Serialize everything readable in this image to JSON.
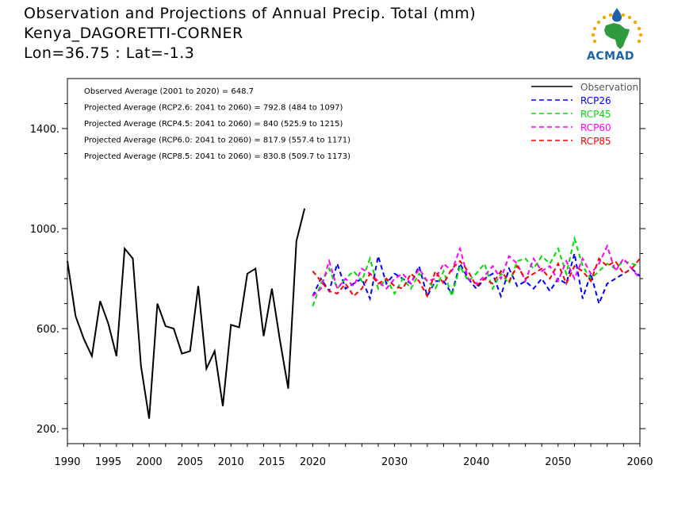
{
  "header": {
    "title": "Observation and Projections of Annual Precip. Total (mm)",
    "station": "Kenya_DAGORETTI-CORNER",
    "coords": "Lon=36.75 : Lat=-1.3"
  },
  "logo": {
    "text": "ACMAD"
  },
  "annotations": [
    "Observed Average (2001 to 2020) = 648.7",
    "Projected Average (RCP2.6: 2041 to 2060) = 792.8 (484 to 1097)",
    "Projected Average (RCP4.5: 2041 to 2060) = 840 (525.9 to 1215)",
    "Projected Average (RCP6.0: 2041 to 2060) = 817.9 (557.4 to 1171)",
    "Projected Average (RCP8.5: 2041 to 2060) = 830.8 (509.7 to 1173)"
  ],
  "chart_data": {
    "type": "line",
    "title": "Observation and Projections of Annual Precip. Total (mm)",
    "xlim": [
      1990,
      2060
    ],
    "ylim": [
      140,
      1600
    ],
    "xticks_labeled": [
      1990,
      1995,
      2000,
      2005,
      2010,
      2015,
      2020,
      2030,
      2040,
      2050,
      2060
    ],
    "yticks": [
      200,
      600,
      1000,
      1400
    ],
    "ytick_labels": [
      "200.",
      "600.",
      "1000.",
      "1400."
    ],
    "legend_position": "top-right",
    "series": [
      {
        "name": "Observation",
        "color": "#000000",
        "dash": "solid",
        "x": [
          1990,
          1991,
          1992,
          1993,
          1994,
          1995,
          1996,
          1997,
          1998,
          1999,
          2000,
          2001,
          2002,
          2003,
          2004,
          2005,
          2006,
          2007,
          2008,
          2009,
          2010,
          2011,
          2012,
          2013,
          2014,
          2015,
          2016,
          2017,
          2018,
          2019,
          2020
        ],
        "values": [
          870,
          650,
          560,
          490,
          710,
          620,
          490,
          920,
          880,
          450,
          240,
          700,
          610,
          600,
          500,
          510,
          770,
          440,
          510,
          290,
          615,
          605,
          820,
          840,
          570,
          760,
          550,
          360,
          950,
          1080,
          null
        ]
      },
      {
        "name": "RCP26",
        "color": "#0000ff",
        "dash": "dashed",
        "x": [
          2020,
          2021,
          2022,
          2023,
          2024,
          2025,
          2026,
          2027,
          2028,
          2029,
          2030,
          2031,
          2032,
          2033,
          2034,
          2035,
          2036,
          2037,
          2038,
          2039,
          2040,
          2041,
          2042,
          2043,
          2044,
          2045,
          2046,
          2047,
          2048,
          2049,
          2050,
          2051,
          2052,
          2053,
          2054,
          2055,
          2056,
          2057,
          2058,
          2059,
          2060
        ],
        "values": [
          730,
          800,
          750,
          860,
          760,
          780,
          800,
          720,
          890,
          780,
          820,
          800,
          780,
          850,
          730,
          790,
          790,
          740,
          860,
          800,
          760,
          800,
          820,
          730,
          840,
          770,
          790,
          760,
          800,
          750,
          800,
          780,
          900,
          720,
          820,
          700,
          780,
          800,
          820,
          840,
          810
        ]
      },
      {
        "name": "RCP45",
        "color": "#00dd00",
        "dash": "dashed",
        "x": [
          2020,
          2021,
          2022,
          2023,
          2024,
          2025,
          2026,
          2027,
          2028,
          2029,
          2030,
          2031,
          2032,
          2033,
          2034,
          2035,
          2036,
          2037,
          2038,
          2039,
          2040,
          2041,
          2042,
          2043,
          2044,
          2045,
          2046,
          2047,
          2048,
          2049,
          2050,
          2051,
          2052,
          2053,
          2054,
          2055,
          2056,
          2057,
          2058,
          2059,
          2060
        ],
        "values": [
          690,
          780,
          840,
          760,
          800,
          830,
          790,
          880,
          760,
          800,
          740,
          800,
          760,
          820,
          790,
          760,
          830,
          730,
          850,
          790,
          820,
          860,
          760,
          820,
          780,
          870,
          880,
          840,
          890,
          860,
          920,
          820,
          960,
          850,
          800,
          830,
          860,
          840,
          870,
          860,
          850
        ]
      },
      {
        "name": "RCP60",
        "color": "#ff00ff",
        "dash": "dashed",
        "x": [
          2020,
          2021,
          2022,
          2023,
          2024,
          2025,
          2026,
          2027,
          2028,
          2029,
          2030,
          2031,
          2032,
          2033,
          2034,
          2035,
          2036,
          2037,
          2038,
          2039,
          2040,
          2041,
          2042,
          2043,
          2044,
          2045,
          2046,
          2047,
          2048,
          2049,
          2050,
          2051,
          2052,
          2053,
          2054,
          2055,
          2056,
          2057,
          2058,
          2059,
          2060
        ],
        "values": [
          730,
          760,
          870,
          760,
          800,
          770,
          840,
          820,
          790,
          760,
          800,
          820,
          780,
          840,
          790,
          800,
          860,
          830,
          920,
          800,
          780,
          810,
          850,
          800,
          890,
          860,
          790,
          880,
          830,
          850,
          790,
          870,
          800,
          880,
          820,
          860,
          930,
          830,
          880,
          840,
          800
        ]
      },
      {
        "name": "RCP85",
        "color": "#ff0000",
        "dash": "dashed",
        "x": [
          2020,
          2021,
          2022,
          2023,
          2024,
          2025,
          2026,
          2027,
          2028,
          2029,
          2030,
          2031,
          2032,
          2033,
          2034,
          2035,
          2036,
          2037,
          2038,
          2039,
          2040,
          2041,
          2042,
          2043,
          2044,
          2045,
          2046,
          2047,
          2048,
          2049,
          2050,
          2051,
          2052,
          2053,
          2054,
          2055,
          2056,
          2057,
          2058,
          2059,
          2060
        ],
        "values": [
          830,
          790,
          750,
          740,
          780,
          730,
          760,
          820,
          780,
          800,
          770,
          760,
          820,
          790,
          730,
          830,
          780,
          840,
          870,
          830,
          770,
          800,
          780,
          830,
          790,
          850,
          800,
          820,
          840,
          800,
          860,
          780,
          850,
          830,
          790,
          880,
          850,
          870,
          820,
          840,
          880
        ]
      }
    ]
  }
}
